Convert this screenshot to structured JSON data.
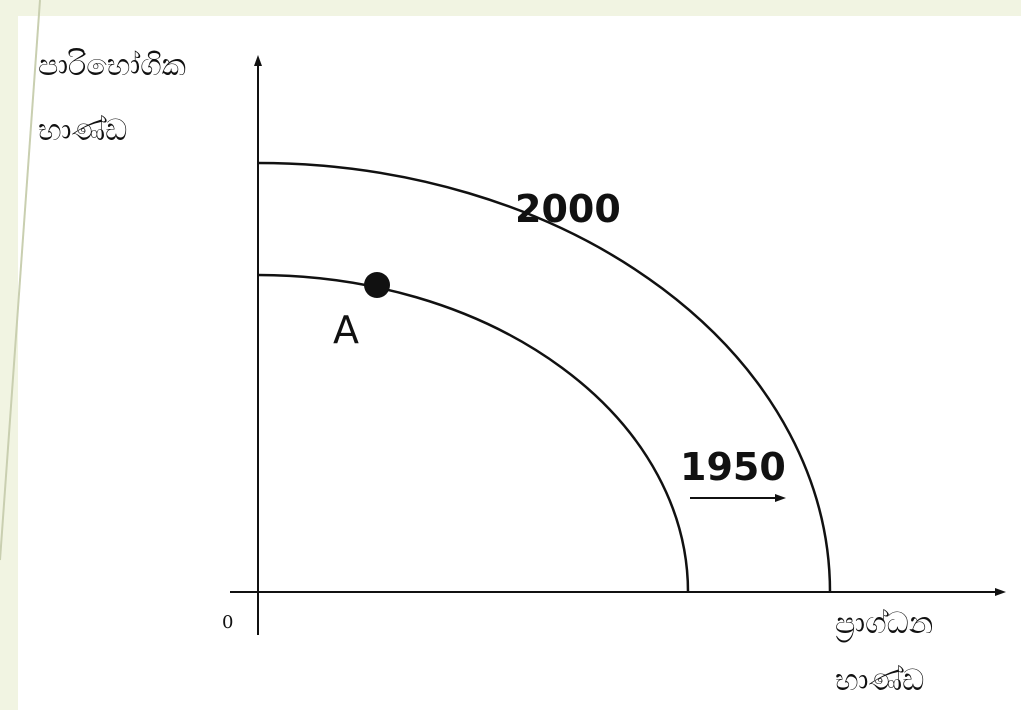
{
  "y_axis_label": [
    "පාරිභෝගික",
    "භාණ්ඩ"
  ],
  "x_axis_label": [
    "ප්‍රාග්ධන",
    "භාණ්ඩ"
  ],
  "origin": "0",
  "curves": [
    {
      "label": "2000"
    },
    {
      "label": "1950"
    }
  ],
  "point": {
    "label": "A"
  }
}
